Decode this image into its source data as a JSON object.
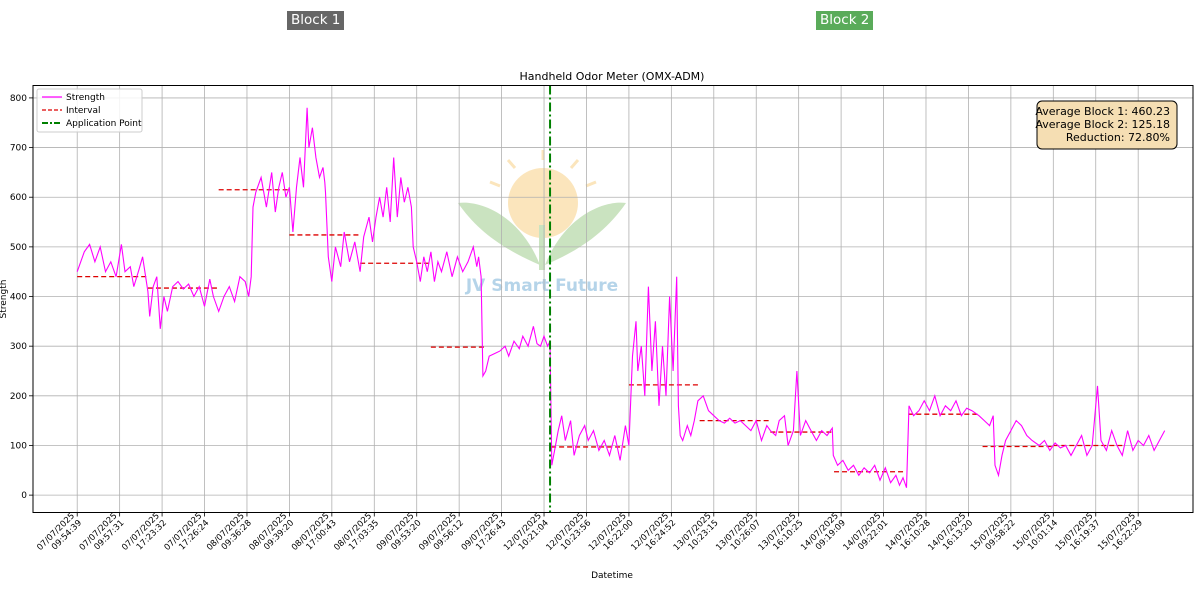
{
  "blocks": {
    "block1": {
      "label": "Block 1",
      "color": "#666666"
    },
    "block2": {
      "label": "Block 2",
      "color": "#5aab5a"
    }
  },
  "watermark": {
    "text": "JV Smart Future"
  },
  "chart_data": {
    "type": "line",
    "title": "Handheld Odor Meter (OMX-ADM)",
    "xlabel": "Datetime",
    "ylabel": "Strength",
    "ylim": [
      -35,
      825
    ],
    "yticks": [
      0,
      100,
      200,
      300,
      400,
      500,
      600,
      700,
      800
    ],
    "grid": true,
    "legend": {
      "placement": "top-left",
      "entries": [
        {
          "label": "Strength",
          "color": "#ff00ff",
          "style": "solid"
        },
        {
          "label": "Interval",
          "color": "#dd0000",
          "style": "dashed"
        },
        {
          "label": "Application Point",
          "color": "#008000",
          "style": "dashdot"
        }
      ]
    },
    "x_ticks": [
      [
        "07/07/2025",
        "09:54:39"
      ],
      [
        "07/07/2025",
        "09:57:31"
      ],
      [
        "07/07/2025",
        "17:23:32"
      ],
      [
        "07/07/2025",
        "17:26:24"
      ],
      [
        "08/07/2025",
        "09:36:28"
      ],
      [
        "08/07/2025",
        "09:39:20"
      ],
      [
        "08/07/2025",
        "17:00:43"
      ],
      [
        "08/07/2025",
        "17:03:35"
      ],
      [
        "09/07/2025",
        "09:53:20"
      ],
      [
        "09/07/2025",
        "09:56:12"
      ],
      [
        "09/07/2025",
        "17:26:43"
      ],
      [
        "12/07/2025",
        "10:21:04"
      ],
      [
        "12/07/2025",
        "10:23:56"
      ],
      [
        "12/07/2025",
        "16:22:00"
      ],
      [
        "12/07/2025",
        "16:24:52"
      ],
      [
        "13/07/2025",
        "10:23:15"
      ],
      [
        "13/07/2025",
        "10:26:07"
      ],
      [
        "13/07/2025",
        "16:10:25"
      ],
      [
        "14/07/2025",
        "09:19:09"
      ],
      [
        "14/07/2025",
        "09:22:01"
      ],
      [
        "14/07/2025",
        "16:10:28"
      ],
      [
        "14/07/2025",
        "16:13:20"
      ],
      [
        "15/07/2025",
        "09:58:22"
      ],
      [
        "15/07/2025",
        "10:01:14"
      ],
      [
        "15/07/2025",
        "16:19:37"
      ],
      [
        "15/07/2025",
        "16:22:29"
      ]
    ],
    "strength_trace": [
      [
        0.0,
        450
      ],
      [
        0.2,
        490
      ],
      [
        0.35,
        505
      ],
      [
        0.5,
        470
      ],
      [
        0.65,
        500
      ],
      [
        0.8,
        450
      ],
      [
        0.95,
        470
      ],
      [
        1.1,
        440
      ],
      [
        1.25,
        505
      ],
      [
        1.35,
        450
      ],
      [
        1.5,
        460
      ],
      [
        1.6,
        420
      ],
      [
        1.75,
        455
      ],
      [
        1.85,
        480
      ],
      [
        2.0,
        410
      ],
      [
        2.05,
        360
      ],
      [
        2.15,
        420
      ],
      [
        2.25,
        440
      ],
      [
        2.35,
        335
      ],
      [
        2.45,
        400
      ],
      [
        2.55,
        370
      ],
      [
        2.7,
        420
      ],
      [
        2.85,
        430
      ],
      [
        3.0,
        415
      ],
      [
        3.15,
        425
      ],
      [
        3.3,
        400
      ],
      [
        3.45,
        420
      ],
      [
        3.6,
        380
      ],
      [
        3.75,
        435
      ],
      [
        3.85,
        400
      ],
      [
        4.0,
        370
      ],
      [
        4.15,
        400
      ],
      [
        4.3,
        420
      ],
      [
        4.45,
        390
      ],
      [
        4.6,
        440
      ],
      [
        4.75,
        430
      ],
      [
        4.85,
        400
      ],
      [
        4.92,
        440
      ],
      [
        4.97,
        580
      ],
      [
        5.05,
        610
      ],
      [
        5.2,
        640
      ],
      [
        5.35,
        580
      ],
      [
        5.5,
        650
      ],
      [
        5.6,
        570
      ],
      [
        5.7,
        620
      ],
      [
        5.8,
        650
      ],
      [
        5.9,
        600
      ],
      [
        6.0,
        620
      ],
      [
        6.1,
        530
      ],
      [
        6.2,
        620
      ],
      [
        6.3,
        680
      ],
      [
        6.4,
        620
      ],
      [
        6.5,
        780
      ],
      [
        6.55,
        700
      ],
      [
        6.65,
        740
      ],
      [
        6.75,
        680
      ],
      [
        6.85,
        640
      ],
      [
        6.95,
        660
      ],
      [
        7.0,
        630
      ],
      [
        7.02,
        610
      ],
      [
        7.1,
        480
      ],
      [
        7.2,
        430
      ],
      [
        7.3,
        500
      ],
      [
        7.45,
        460
      ],
      [
        7.55,
        530
      ],
      [
        7.7,
        470
      ],
      [
        7.85,
        510
      ],
      [
        8.0,
        450
      ],
      [
        8.1,
        520
      ],
      [
        8.25,
        560
      ],
      [
        8.35,
        510
      ],
      [
        8.45,
        560
      ],
      [
        8.55,
        600
      ],
      [
        8.65,
        560
      ],
      [
        8.75,
        620
      ],
      [
        8.85,
        550
      ],
      [
        8.95,
        680
      ],
      [
        9.05,
        560
      ],
      [
        9.15,
        640
      ],
      [
        9.25,
        590
      ],
      [
        9.35,
        620
      ],
      [
        9.45,
        580
      ],
      [
        9.5,
        500
      ],
      [
        9.6,
        470
      ],
      [
        9.7,
        430
      ],
      [
        9.8,
        480
      ],
      [
        9.9,
        450
      ],
      [
        10.0,
        490
      ],
      [
        10.1,
        430
      ],
      [
        10.2,
        470
      ],
      [
        10.3,
        450
      ],
      [
        10.45,
        490
      ],
      [
        10.6,
        440
      ],
      [
        10.75,
        480
      ],
      [
        10.9,
        450
      ],
      [
        11.05,
        470
      ],
      [
        11.2,
        500
      ],
      [
        11.3,
        460
      ],
      [
        11.35,
        480
      ],
      [
        11.42,
        440
      ],
      [
        11.47,
        240
      ],
      [
        11.55,
        250
      ],
      [
        11.65,
        280
      ],
      [
        11.8,
        285
      ],
      [
        11.95,
        290
      ],
      [
        12.1,
        300
      ],
      [
        12.2,
        280
      ],
      [
        12.35,
        310
      ],
      [
        12.5,
        295
      ],
      [
        12.6,
        320
      ],
      [
        12.75,
        300
      ],
      [
        12.9,
        340
      ],
      [
        13.0,
        305
      ],
      [
        13.1,
        300
      ],
      [
        13.2,
        320
      ],
      [
        13.3,
        300
      ],
      [
        13.37,
        310
      ],
      [
        13.42,
        60
      ],
      [
        13.5,
        90
      ],
      [
        13.6,
        130
      ],
      [
        13.7,
        160
      ],
      [
        13.8,
        110
      ],
      [
        13.95,
        150
      ],
      [
        14.05,
        80
      ],
      [
        14.2,
        120
      ],
      [
        14.35,
        140
      ],
      [
        14.45,
        110
      ],
      [
        14.6,
        130
      ],
      [
        14.75,
        90
      ],
      [
        14.9,
        110
      ],
      [
        15.05,
        80
      ],
      [
        15.2,
        120
      ],
      [
        15.35,
        70
      ],
      [
        15.5,
        140
      ],
      [
        15.6,
        100
      ],
      [
        15.7,
        280
      ],
      [
        15.8,
        350
      ],
      [
        15.85,
        250
      ],
      [
        15.95,
        300
      ],
      [
        16.05,
        200
      ],
      [
        16.15,
        420
      ],
      [
        16.25,
        250
      ],
      [
        16.35,
        350
      ],
      [
        16.45,
        180
      ],
      [
        16.55,
        300
      ],
      [
        16.65,
        200
      ],
      [
        16.75,
        400
      ],
      [
        16.85,
        250
      ],
      [
        16.95,
        440
      ],
      [
        17.0,
        180
      ],
      [
        17.05,
        120
      ],
      [
        17.12,
        110
      ],
      [
        17.25,
        140
      ],
      [
        17.35,
        120
      ],
      [
        17.45,
        150
      ],
      [
        17.55,
        190
      ],
      [
        17.7,
        200
      ],
      [
        17.85,
        170
      ],
      [
        18.0,
        160
      ],
      [
        18.15,
        150
      ],
      [
        18.3,
        145
      ],
      [
        18.45,
        155
      ],
      [
        18.6,
        145
      ],
      [
        18.75,
        150
      ],
      [
        18.9,
        140
      ],
      [
        19.05,
        130
      ],
      [
        19.2,
        150
      ],
      [
        19.35,
        110
      ],
      [
        19.5,
        140
      ],
      [
        19.6,
        130
      ],
      [
        19.75,
        120
      ],
      [
        19.85,
        150
      ],
      [
        20.0,
        160
      ],
      [
        20.1,
        100
      ],
      [
        20.25,
        130
      ],
      [
        20.35,
        250
      ],
      [
        20.45,
        120
      ],
      [
        20.6,
        150
      ],
      [
        20.75,
        130
      ],
      [
        20.9,
        110
      ],
      [
        21.05,
        130
      ],
      [
        21.2,
        120
      ],
      [
        21.35,
        135
      ],
      [
        21.38,
        80
      ],
      [
        21.5,
        60
      ],
      [
        21.65,
        70
      ],
      [
        21.8,
        50
      ],
      [
        21.95,
        60
      ],
      [
        22.1,
        40
      ],
      [
        22.25,
        55
      ],
      [
        22.4,
        45
      ],
      [
        22.55,
        60
      ],
      [
        22.7,
        30
      ],
      [
        22.85,
        55
      ],
      [
        23.0,
        25
      ],
      [
        23.15,
        40
      ],
      [
        23.25,
        20
      ],
      [
        23.35,
        35
      ],
      [
        23.45,
        15
      ],
      [
        23.52,
        180
      ],
      [
        23.65,
        160
      ],
      [
        23.8,
        170
      ],
      [
        23.95,
        190
      ],
      [
        24.1,
        170
      ],
      [
        24.25,
        200
      ],
      [
        24.4,
        160
      ],
      [
        24.55,
        180
      ],
      [
        24.7,
        170
      ],
      [
        24.85,
        190
      ],
      [
        25.0,
        160
      ],
      [
        25.15,
        175
      ],
      [
        25.3,
        170
      ],
      [
        25.5,
        160
      ],
      [
        25.65,
        150
      ],
      [
        25.8,
        140
      ],
      [
        25.9,
        160
      ],
      [
        25.95,
        60
      ],
      [
        26.05,
        40
      ],
      [
        26.15,
        80
      ],
      [
        26.25,
        110
      ],
      [
        26.4,
        130
      ],
      [
        26.55,
        150
      ],
      [
        26.7,
        140
      ],
      [
        26.85,
        120
      ],
      [
        27.0,
        110
      ],
      [
        27.2,
        100
      ],
      [
        27.35,
        110
      ],
      [
        27.5,
        90
      ],
      [
        27.65,
        105
      ],
      [
        27.8,
        95
      ],
      [
        27.95,
        100
      ],
      [
        28.1,
        80
      ],
      [
        28.25,
        100
      ],
      [
        28.4,
        120
      ],
      [
        28.55,
        80
      ],
      [
        28.7,
        100
      ],
      [
        28.85,
        220
      ],
      [
        28.95,
        110
      ],
      [
        29.1,
        90
      ],
      [
        29.25,
        130
      ],
      [
        29.4,
        100
      ],
      [
        29.55,
        80
      ],
      [
        29.7,
        130
      ],
      [
        29.85,
        90
      ],
      [
        30.0,
        110
      ],
      [
        30.15,
        100
      ],
      [
        30.3,
        120
      ],
      [
        30.45,
        90
      ],
      [
        30.6,
        110
      ],
      [
        30.75,
        130
      ]
    ],
    "interval_segments": [
      {
        "x": [
          0.0,
          2.0
        ],
        "value": 440
      },
      {
        "x": [
          2.0,
          4.0
        ],
        "value": 417
      },
      {
        "x": [
          4.0,
          6.0
        ],
        "value": 615
      },
      {
        "x": [
          6.0,
          8.0
        ],
        "value": 524
      },
      {
        "x": [
          8.0,
          10.0
        ],
        "value": 467
      },
      {
        "x": [
          10.0,
          11.5
        ],
        "value": 298
      },
      {
        "x": [
          13.4,
          15.5
        ],
        "value": 97
      },
      {
        "x": [
          15.6,
          17.6
        ],
        "value": 222
      },
      {
        "x": [
          17.6,
          19.6
        ],
        "value": 150
      },
      {
        "x": [
          19.6,
          21.4
        ],
        "value": 127
      },
      {
        "x": [
          21.4,
          23.4
        ],
        "value": 47
      },
      {
        "x": [
          23.5,
          25.5
        ],
        "value": 163
      },
      {
        "x": [
          25.6,
          27.6
        ],
        "value": 98
      },
      {
        "x": [
          27.6,
          29.6
        ],
        "value": 100
      }
    ],
    "application_point": {
      "x": 13.37
    },
    "x_range": [
      -1.25,
      31.55
    ],
    "annotation": {
      "lines": [
        "Average Block 1: 460.23",
        "Average Block 2: 125.18",
        "Reduction: 72.80%"
      ],
      "placement": "top-right"
    }
  }
}
